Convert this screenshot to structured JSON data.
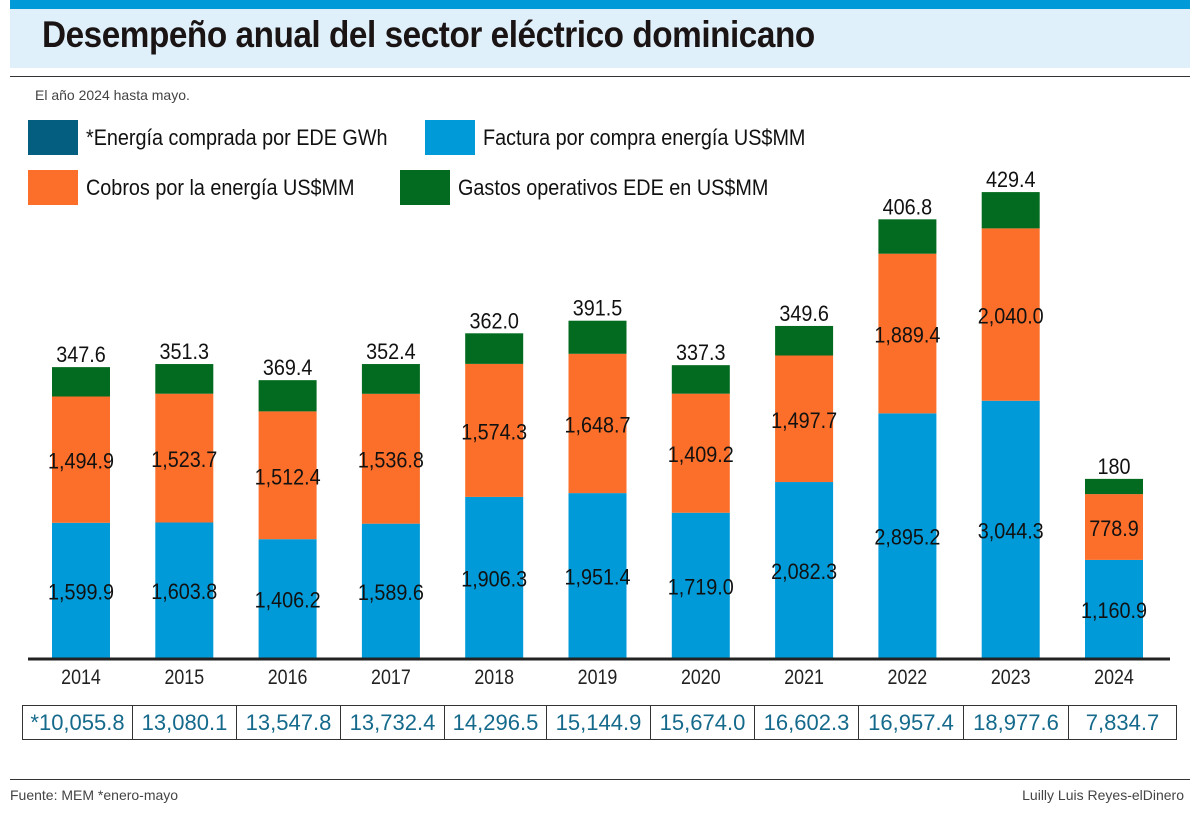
{
  "header": {
    "title": "Desempeño anual del sector eléctrico dominicano",
    "subtitle": "El año 2024 hasta mayo."
  },
  "legend": [
    {
      "label": "*Energía comprada por EDE GWh",
      "color": "#035e80"
    },
    {
      "label": "Factura por compra energía US$MM",
      "color": "#009ad8"
    },
    {
      "label": "Cobros por la energía US$MM",
      "color": "#fb6f2a"
    },
    {
      "label": "Gastos operativos EDE en US$MM",
      "color": "#036b1f"
    }
  ],
  "chart_data": {
    "type": "bar",
    "stacked": true,
    "title": "Desempeño anual del sector eléctrico dominicano",
    "subtitle": "El año 2024 hasta mayo.",
    "xlabel": "",
    "ylabel": "",
    "categories": [
      "2014",
      "2015",
      "2016",
      "2017",
      "2018",
      "2019",
      "2020",
      "2021",
      "2022",
      "2023",
      "2024"
    ],
    "series": [
      {
        "name": "Factura por compra energía US$MM",
        "color": "#009ad8",
        "values": [
          1599.9,
          1603.8,
          1406.2,
          1589.6,
          1906.3,
          1951.4,
          1719.0,
          2082.3,
          2895.2,
          3044.3,
          1160.9
        ],
        "labels": [
          "1,599.9",
          "1,603.8",
          "1,406.2",
          "1,589.6",
          "1,906.3",
          "1,951.4",
          "1,719.0",
          "2,082.3",
          "2,895.2",
          "3,044.3",
          "1,160.9"
        ]
      },
      {
        "name": "Cobros por la energía US$MM",
        "color": "#fb6f2a",
        "values": [
          1494.9,
          1523.7,
          1512.4,
          1536.8,
          1574.3,
          1648.7,
          1409.2,
          1497.7,
          1889.4,
          2040.0,
          778.9
        ],
        "labels": [
          "1,494.9",
          "1,523.7",
          "1,512.4",
          "1,536.8",
          "1,574.3",
          "1,648.7",
          "1,409.2",
          "1,497.7",
          "1,889.4",
          "2,040.0",
          "778.9"
        ]
      },
      {
        "name": "Gastos operativos EDE en US$MM",
        "color": "#036b1f",
        "values": [
          347.6,
          351.3,
          369.4,
          352.4,
          362.0,
          391.5,
          337.3,
          349.6,
          406.8,
          429.4,
          180
        ],
        "labels": [
          "347.6",
          "351.3",
          "369.4",
          "352.4",
          "362.0",
          "391.5",
          "337.3",
          "349.6",
          "406.8",
          "429.4",
          "180"
        ]
      }
    ],
    "table_row": {
      "name": "*Energía comprada por EDE GWh",
      "values": [
        10055.8,
        13080.1,
        13547.8,
        13732.4,
        14296.5,
        15144.9,
        15674.0,
        16602.3,
        16957.4,
        18977.6,
        7834.7
      ],
      "labels": [
        "*10,055.8",
        "13,080.1",
        "13,547.8",
        "13,732.4",
        "14,296.5",
        "15,144.9",
        "15,674.0",
        "16,602.3",
        "16,957.4",
        "18,977.6",
        "7,834.7"
      ]
    },
    "grid": false,
    "legend_position": "top-left"
  },
  "footer": {
    "source": "Fuente: MEM *enero-mayo",
    "credit": "Luilly Luis Reyes-elDinero"
  }
}
